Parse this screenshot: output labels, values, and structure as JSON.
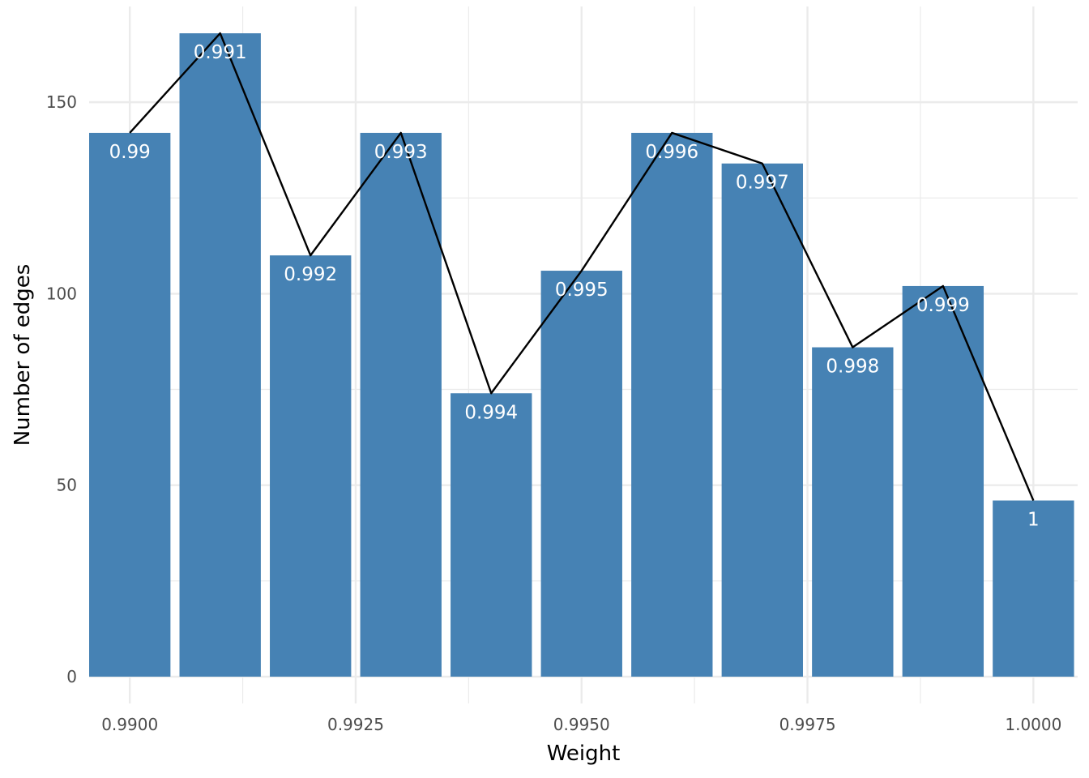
{
  "chart_data": {
    "type": "bar",
    "xlabel": "Weight",
    "ylabel": "Number of edges",
    "x": [
      0.99,
      0.991,
      0.992,
      0.993,
      0.994,
      0.995,
      0.996,
      0.997,
      0.998,
      0.999,
      1.0
    ],
    "values": [
      142,
      168,
      110,
      142,
      74,
      106,
      142,
      134,
      86,
      102,
      46
    ],
    "bar_labels": [
      "0.99",
      "0.991",
      "0.992",
      "0.993",
      "0.994",
      "0.995",
      "0.996",
      "0.997",
      "0.998",
      "0.999",
      "1"
    ],
    "overlay_line": true,
    "xlim": [
      0.98955,
      1.00049
    ],
    "ylim": [
      -7,
      175
    ],
    "x_ticks": [
      0.99,
      0.9925,
      0.995,
      0.9975,
      1.0
    ],
    "x_tick_labels": [
      "0.9900",
      "0.9925",
      "0.9950",
      "0.9975",
      "1.0000"
    ],
    "y_ticks": [
      0,
      50,
      100,
      150
    ],
    "y_tick_labels": [
      "0",
      "50",
      "100",
      "150"
    ],
    "bar_width": 0.0009,
    "grid": true,
    "colors": {
      "bar": "#4682b4",
      "line": "#000000",
      "grid": "#ebebeb",
      "label": "#ffffff"
    }
  }
}
